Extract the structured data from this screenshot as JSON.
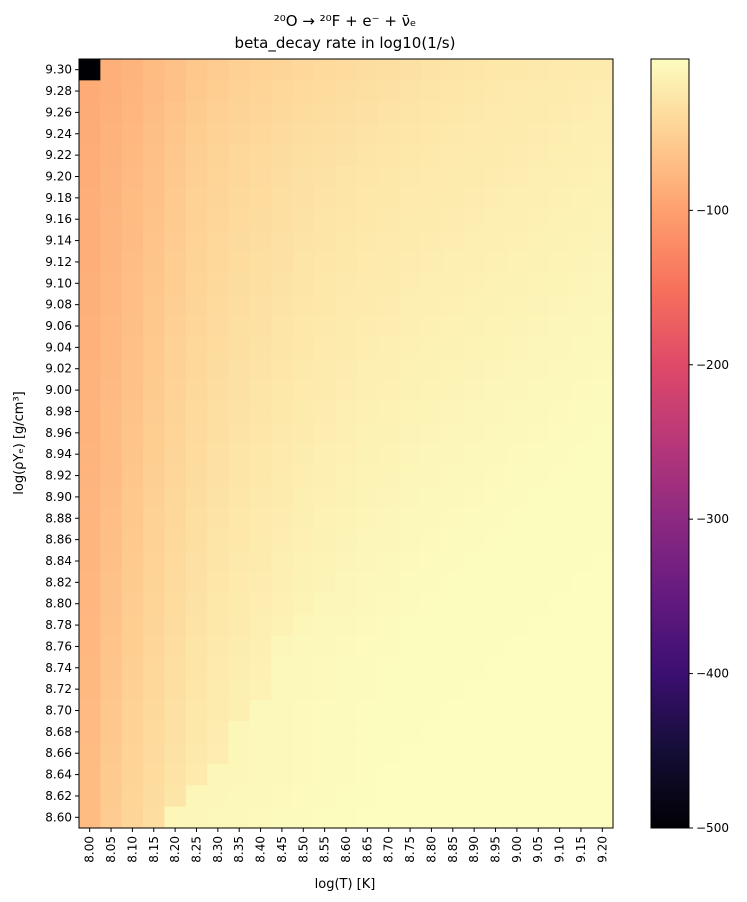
{
  "chart_data": {
    "type": "heatmap",
    "title_line1": "²⁰O → ²⁰F + e⁻ + ν̄ₑ",
    "title_line2": "beta_decay rate in log10(1/s)",
    "xlabel": "log(T) [K]",
    "ylabel": "log(ρYₑ) [g/cm³]",
    "x_ticks": [
      "8.00",
      "8.05",
      "8.10",
      "8.15",
      "8.20",
      "8.25",
      "8.30",
      "8.35",
      "8.40",
      "8.45",
      "8.50",
      "8.55",
      "8.60",
      "8.65",
      "8.70",
      "8.75",
      "8.80",
      "8.85",
      "8.90",
      "8.95",
      "9.00",
      "9.05",
      "9.10",
      "9.15",
      "9.20"
    ],
    "y_ticks": [
      "9.30",
      "9.28",
      "9.26",
      "9.24",
      "9.22",
      "9.20",
      "9.18",
      "9.16",
      "9.14",
      "9.12",
      "9.10",
      "9.08",
      "9.06",
      "9.04",
      "9.02",
      "9.00",
      "8.98",
      "8.96",
      "8.94",
      "8.92",
      "8.90",
      "8.88",
      "8.86",
      "8.84",
      "8.82",
      "8.80",
      "8.78",
      "8.76",
      "8.74",
      "8.72",
      "8.70",
      "8.68",
      "8.66",
      "8.64",
      "8.62",
      "8.60"
    ],
    "colorbar": {
      "colormap": "magma",
      "vmin": -500,
      "vmax": -2,
      "ticks": [
        -100,
        -200,
        -300,
        -400,
        -500
      ],
      "tick_labels": [
        "−100",
        "−200",
        "−300",
        "−400",
        "−500"
      ]
    },
    "values_note_masked": "cell at log(T)=8.00, log(ρYe)=9.30 shown black (≈ -500)",
    "z_rows_top_to_bottom": [
      [
        -500,
        -84,
        -80,
        -72,
        -66,
        -60,
        -55,
        -51,
        -48,
        -45,
        -42,
        -40,
        -38,
        -36,
        -34,
        -32,
        -30,
        -28,
        -27,
        -26,
        -25,
        -24,
        -23,
        -22,
        -21
      ],
      [
        -89,
        -84,
        -79,
        -71,
        -65,
        -58,
        -53,
        -49,
        -46,
        -43,
        -40,
        -38,
        -36,
        -34,
        -32,
        -30,
        -28,
        -27,
        -25,
        -24,
        -23,
        -22,
        -21,
        -20,
        -19
      ],
      [
        -88,
        -83,
        -77,
        -70,
        -63,
        -56,
        -51,
        -47,
        -44,
        -41,
        -38,
        -36,
        -34,
        -32,
        -30,
        -28,
        -27,
        -25,
        -24,
        -23,
        -22,
        -21,
        -20,
        -19,
        -18
      ],
      [
        -88,
        -82,
        -76,
        -68,
        -61,
        -54,
        -49,
        -45,
        -42,
        -39,
        -36,
        -34,
        -32,
        -30,
        -28,
        -27,
        -25,
        -24,
        -23,
        -22,
        -21,
        -20,
        -19,
        -18,
        -17
      ],
      [
        -87,
        -81,
        -75,
        -67,
        -59,
        -52,
        -47,
        -43,
        -40,
        -37,
        -35,
        -33,
        -31,
        -29,
        -27,
        -25,
        -24,
        -23,
        -22,
        -21,
        -20,
        -19,
        -18,
        -17,
        -16
      ],
      [
        -87,
        -80,
        -74,
        -66,
        -58,
        -51,
        -46,
        -42,
        -39,
        -36,
        -33,
        -31,
        -29,
        -27,
        -26,
        -24,
        -23,
        -22,
        -21,
        -20,
        -19,
        -18,
        -17,
        -16,
        -15
      ],
      [
        -86,
        -80,
        -73,
        -65,
        -57,
        -50,
        -45,
        -41,
        -38,
        -35,
        -32,
        -30,
        -28,
        -26,
        -25,
        -23,
        -22,
        -21,
        -20,
        -19,
        -18,
        -17,
        -16,
        -15,
        -14
      ],
      [
        -86,
        -79,
        -72,
        -64,
        -56,
        -49,
        -44,
        -40,
        -37,
        -34,
        -31,
        -29,
        -27,
        -25,
        -24,
        -22,
        -21,
        -20,
        -19,
        -18,
        -17,
        -16,
        -15,
        -14,
        -13
      ],
      [
        -85,
        -79,
        -71,
        -63,
        -55,
        -48,
        -43,
        -39,
        -36,
        -33,
        -30,
        -28,
        -26,
        -24,
        -23,
        -21,
        -20,
        -19,
        -18,
        -17,
        -16,
        -15,
        -14,
        -13,
        -12
      ],
      [
        -85,
        -78,
        -70,
        -62,
        -54,
        -47,
        -42,
        -38,
        -35,
        -32,
        -29,
        -27,
        -25,
        -23,
        -22,
        -20,
        -19,
        -18,
        -17,
        -16,
        -15,
        -14,
        -13,
        -12,
        -11
      ],
      [
        -84,
        -77,
        -69,
        -61,
        -53,
        -46,
        -41,
        -37,
        -34,
        -31,
        -28,
        -26,
        -24,
        -22,
        -21,
        -19,
        -18,
        -17,
        -16,
        -15,
        -14,
        -13,
        -12,
        -11,
        -10
      ],
      [
        -84,
        -77,
        -69,
        -60,
        -52,
        -45,
        -40,
        -36,
        -33,
        -30,
        -27,
        -25,
        -23,
        -21,
        -20,
        -18,
        -17,
        -16,
        -15,
        -14,
        -13,
        -12,
        -11,
        -10,
        -9
      ],
      [
        -83,
        -76,
        -68,
        -59,
        -51,
        -44,
        -39,
        -35,
        -32,
        -29,
        -26,
        -24,
        -22,
        -20,
        -19,
        -17,
        -16,
        -15,
        -14,
        -13,
        -12,
        -11,
        -10,
        -9,
        -8
      ],
      [
        -83,
        -75,
        -67,
        -58,
        -50,
        -43,
        -38,
        -34,
        -31,
        -28,
        -25,
        -23,
        -21,
        -19,
        -18,
        -16,
        -15,
        -14,
        -13,
        -12,
        -11,
        -10,
        -9,
        -8,
        -7
      ],
      [
        -82,
        -75,
        -66,
        -57,
        -49,
        -42,
        -37,
        -33,
        -30,
        -27,
        -24,
        -22,
        -20,
        -18,
        -17,
        -15,
        -14,
        -13,
        -12,
        -11,
        -10,
        -9,
        -8,
        -7,
        -6
      ],
      [
        -82,
        -74,
        -65,
        -56,
        -48,
        -41,
        -36,
        -32,
        -29,
        -26,
        -23,
        -21,
        -19,
        -17,
        -16,
        -14,
        -13,
        -12,
        -11,
        -10,
        -9,
        -8,
        -7,
        -6,
        -5
      ],
      [
        -81,
        -73,
        -64,
        -55,
        -47,
        -40,
        -35,
        -31,
        -28,
        -25,
        -22,
        -20,
        -18,
        -16,
        -15,
        -13,
        -12,
        -11,
        -10,
        -9,
        -8,
        -7,
        -6,
        -5,
        -4
      ],
      [
        -81,
        -73,
        -63,
        -54,
        -46,
        -39,
        -34,
        -30,
        -27,
        -24,
        -21,
        -19,
        -17,
        -15,
        -14,
        -12,
        -11,
        -10,
        -9,
        -8,
        -7,
        -6,
        -5,
        -4,
        -3
      ],
      [
        -80,
        -72,
        -62,
        -53,
        -45,
        -38,
        -33,
        -29,
        -26,
        -23,
        -20,
        -18,
        -16,
        -14,
        -13,
        -11,
        -10,
        -9,
        -8,
        -7,
        -6,
        -5,
        -4,
        -3,
        -3
      ],
      [
        -80,
        -71,
        -61,
        -52,
        -44,
        -37,
        -32,
        -28,
        -25,
        -22,
        -19,
        -17,
        -15,
        -13,
        -12,
        -10,
        -9,
        -8,
        -7,
        -6,
        -5,
        -4,
        -3,
        -3,
        -3
      ],
      [
        -79,
        -70,
        -60,
        -51,
        -43,
        -36,
        -31,
        -27,
        -24,
        -21,
        -18,
        -16,
        -14,
        -12,
        -11,
        -9,
        -8,
        -7,
        -6,
        -5,
        -4,
        -3,
        -3,
        -3,
        -3
      ],
      [
        -79,
        -69,
        -59,
        -50,
        -42,
        -35,
        -30,
        -26,
        -23,
        -20,
        -17,
        -15,
        -13,
        -11,
        -10,
        -8,
        -7,
        -6,
        -5,
        -4,
        -3,
        -3,
        -3,
        -3,
        -3
      ],
      [
        -78,
        -68,
        -58,
        -49,
        -41,
        -34,
        -29,
        -25,
        -22,
        -19,
        -16,
        -14,
        -12,
        -10,
        -9,
        -7,
        -6,
        -5,
        -4,
        -3,
        -3,
        -3,
        -3,
        -3,
        -3
      ],
      [
        -78,
        -67,
        -57,
        -48,
        -40,
        -33,
        -28,
        -24,
        -21,
        -18,
        -15,
        -13,
        -11,
        -9,
        -8,
        -6,
        -5,
        -4,
        -3,
        -3,
        -3,
        -3,
        -3,
        -3,
        -2
      ],
      [
        -77,
        -66,
        -56,
        -47,
        -39,
        -32,
        -27,
        -23,
        -20,
        -17,
        -14,
        -12,
        -10,
        -8,
        -7,
        -5,
        -4,
        -3,
        -3,
        -3,
        -3,
        -3,
        -3,
        -2,
        -2
      ],
      [
        -77,
        -65,
        -55,
        -46,
        -38,
        -31,
        -26,
        -22,
        -19,
        -16,
        -13,
        -10,
        -9,
        -7,
        -6,
        -4,
        -3,
        -3,
        -3,
        -3,
        -3,
        -3,
        -2,
        -2,
        -2
      ],
      [
        -76,
        -64,
        -54,
        -45,
        -37,
        -30,
        -25,
        -21,
        -18,
        -15,
        -9,
        -8,
        -7,
        -6,
        -5,
        -3,
        -3,
        -3,
        -3,
        -3,
        -3,
        -2,
        -2,
        -2,
        -2
      ],
      [
        -76,
        -63,
        -53,
        -44,
        -36,
        -29,
        -24,
        -20,
        -17,
        -9,
        -8,
        -7,
        -6,
        -5,
        -4,
        -3,
        -3,
        -3,
        -3,
        -3,
        -2,
        -2,
        -2,
        -2,
        -2
      ],
      [
        -75,
        -62,
        -52,
        -43,
        -35,
        -28,
        -23,
        -19,
        -16,
        -8,
        -7,
        -6,
        -5,
        -4,
        -3,
        -3,
        -3,
        -3,
        -3,
        -2,
        -2,
        -2,
        -2,
        -2,
        -2
      ],
      [
        -75,
        -61,
        -51,
        -42,
        -34,
        -27,
        -22,
        -18,
        -15,
        -8,
        -7,
        -6,
        -5,
        -4,
        -3,
        -3,
        -3,
        -3,
        -2,
        -2,
        -2,
        -2,
        -2,
        -2,
        -2
      ],
      [
        -74,
        -60,
        -50,
        -41,
        -33,
        -26,
        -21,
        -17,
        -8,
        -7,
        -6,
        -5,
        -4,
        -3,
        -3,
        -3,
        -3,
        -2,
        -2,
        -2,
        -2,
        -2,
        -2,
        -2,
        -2
      ],
      [
        -74,
        -59,
        -49,
        -40,
        -32,
        -25,
        -20,
        -9,
        -8,
        -7,
        -6,
        -5,
        -4,
        -3,
        -3,
        -3,
        -2,
        -2,
        -2,
        -2,
        -2,
        -2,
        -2,
        -2,
        -2
      ],
      [
        -73,
        -58,
        -48,
        -39,
        -31,
        -24,
        -19,
        -9,
        -8,
        -7,
        -6,
        -5,
        -4,
        -3,
        -3,
        -2,
        -2,
        -2,
        -2,
        -2,
        -2,
        -2,
        -2,
        -2,
        -2
      ],
      [
        -73,
        -57,
        -47,
        -38,
        -30,
        -23,
        -10,
        -9,
        -8,
        -7,
        -6,
        -5,
        -4,
        -3,
        -2,
        -2,
        -2,
        -2,
        -2,
        -2,
        -2,
        -2,
        -2,
        -2,
        -2
      ],
      [
        -72,
        -56,
        -46,
        -37,
        -29,
        -10,
        -9,
        -8,
        -7,
        -6,
        -5,
        -4,
        -3,
        -3,
        -2,
        -2,
        -2,
        -2,
        -2,
        -2,
        -2,
        -2,
        -2,
        -2,
        -2
      ],
      [
        -72,
        -55,
        -45,
        -36,
        -10,
        -9,
        -8,
        -7,
        -6,
        -5,
        -4,
        -3,
        -3,
        -2,
        -2,
        -2,
        -2,
        -2,
        -2,
        -2,
        -2,
        -2,
        -2,
        -2,
        -2
      ]
    ]
  }
}
